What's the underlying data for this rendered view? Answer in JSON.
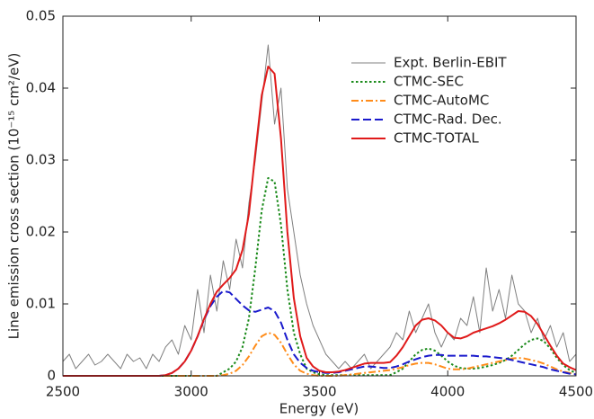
{
  "chart_data": {
    "type": "line",
    "xlabel": "Energy (eV)",
    "ylabel": "Line emission cross section (10⁻¹⁵ cm²/eV)",
    "x": [
      2500,
      2525,
      2550,
      2575,
      2600,
      2625,
      2650,
      2675,
      2700,
      2725,
      2750,
      2775,
      2800,
      2825,
      2850,
      2875,
      2900,
      2925,
      2950,
      2975,
      3000,
      3025,
      3050,
      3075,
      3100,
      3125,
      3150,
      3175,
      3200,
      3225,
      3250,
      3275,
      3300,
      3325,
      3350,
      3375,
      3400,
      3425,
      3450,
      3475,
      3500,
      3525,
      3550,
      3575,
      3600,
      3625,
      3650,
      3675,
      3700,
      3725,
      3750,
      3775,
      3800,
      3825,
      3850,
      3875,
      3900,
      3925,
      3950,
      3975,
      4000,
      4025,
      4050,
      4075,
      4100,
      4125,
      4150,
      4175,
      4200,
      4225,
      4250,
      4275,
      4300,
      4325,
      4350,
      4375,
      4400,
      4425,
      4450,
      4475,
      4500
    ],
    "series": [
      {
        "name": "Expt. Berlin-EBIT",
        "color": "#808080",
        "linestyle": "solid",
        "width": 1,
        "values": [
          0.002,
          0.003,
          0.001,
          0.002,
          0.003,
          0.0015,
          0.002,
          0.003,
          0.002,
          0.001,
          0.003,
          0.002,
          0.0025,
          0.001,
          0.003,
          0.002,
          0.004,
          0.005,
          0.003,
          0.007,
          0.005,
          0.012,
          0.006,
          0.014,
          0.009,
          0.016,
          0.012,
          0.019,
          0.015,
          0.024,
          0.03,
          0.038,
          0.046,
          0.035,
          0.04,
          0.026,
          0.02,
          0.014,
          0.01,
          0.007,
          0.005,
          0.003,
          0.002,
          0.001,
          0.002,
          0.001,
          0.002,
          0.003,
          0.001,
          0.002,
          0.003,
          0.004,
          0.006,
          0.005,
          0.009,
          0.006,
          0.008,
          0.01,
          0.006,
          0.004,
          0.006,
          0.005,
          0.008,
          0.007,
          0.011,
          0.006,
          0.015,
          0.009,
          0.012,
          0.008,
          0.014,
          0.01,
          0.009,
          0.006,
          0.008,
          0.005,
          0.007,
          0.004,
          0.006,
          0.002,
          0.003
        ]
      },
      {
        "name": "CTMC-SEC",
        "color": "#1a8a1a",
        "linestyle": "dotted",
        "width": 2,
        "values": [
          0,
          0,
          0,
          0,
          0,
          0,
          0,
          0,
          0,
          0,
          0,
          0,
          0,
          0,
          0,
          0,
          0,
          0,
          0,
          0,
          0,
          0,
          0,
          0,
          0,
          0.0005,
          0.001,
          0.002,
          0.004,
          0.008,
          0.015,
          0.023,
          0.0275,
          0.027,
          0.021,
          0.012,
          0.006,
          0.003,
          0.001,
          0.0005,
          0.0002,
          0.0001,
          0.0001,
          0.0001,
          0.0001,
          0.0001,
          0.0001,
          0.0001,
          0.0001,
          0.0001,
          0.0001,
          0.0001,
          0.0005,
          0.001,
          0.002,
          0.003,
          0.0036,
          0.0038,
          0.0035,
          0.0028,
          0.002,
          0.0014,
          0.0011,
          0.001,
          0.001,
          0.0011,
          0.0013,
          0.0015,
          0.0018,
          0.0022,
          0.0028,
          0.0036,
          0.0044,
          0.005,
          0.0052,
          0.0048,
          0.0038,
          0.0025,
          0.0015,
          0.0008,
          0.0004
        ]
      },
      {
        "name": "CTMC-AutoMC",
        "color": "#ff8c1a",
        "linestyle": "dashdot",
        "width": 2,
        "values": [
          0,
          0,
          0,
          0,
          0,
          0,
          0,
          0,
          0,
          0,
          0,
          0,
          0,
          0,
          0,
          0,
          0,
          0,
          0,
          0,
          0,
          0,
          0,
          0,
          0,
          0.0001,
          0.0003,
          0.0007,
          0.0015,
          0.0027,
          0.0042,
          0.0055,
          0.006,
          0.0057,
          0.0046,
          0.003,
          0.0016,
          0.0007,
          0.0003,
          0.0001,
          0,
          0,
          0,
          0,
          0.0001,
          0.0002,
          0.0003,
          0.0004,
          0.0005,
          0.0006,
          0.0007,
          0.0008,
          0.001,
          0.0012,
          0.0015,
          0.0017,
          0.0018,
          0.0018,
          0.0016,
          0.0013,
          0.001,
          0.0009,
          0.0009,
          0.001,
          0.0012,
          0.0014,
          0.0016,
          0.0018,
          0.002,
          0.0022,
          0.0024,
          0.0025,
          0.0024,
          0.0022,
          0.002,
          0.0017,
          0.0013,
          0.0009,
          0.0006,
          0.0004,
          0.0002
        ]
      },
      {
        "name": "CTMC-Rad. Dec.",
        "color": "#1a1acc",
        "linestyle": "dashed",
        "width": 2,
        "values": [
          0,
          0,
          0,
          0,
          0,
          0,
          0,
          0,
          0,
          0,
          0,
          0,
          0,
          0,
          0,
          0,
          0.0001,
          0.0004,
          0.001,
          0.002,
          0.0035,
          0.0055,
          0.0078,
          0.0097,
          0.011,
          0.0118,
          0.0116,
          0.0107,
          0.0098,
          0.0091,
          0.0089,
          0.0092,
          0.0095,
          0.009,
          0.0074,
          0.005,
          0.003,
          0.0018,
          0.0011,
          0.0007,
          0.0005,
          0.0004,
          0.0004,
          0.0005,
          0.0007,
          0.0009,
          0.0011,
          0.0013,
          0.0013,
          0.0012,
          0.0011,
          0.0011,
          0.0013,
          0.0016,
          0.002,
          0.0023,
          0.0026,
          0.0028,
          0.0029,
          0.0029,
          0.0028,
          0.0028,
          0.0028,
          0.0028,
          0.0028,
          0.0027,
          0.0027,
          0.0026,
          0.0025,
          0.0024,
          0.0022,
          0.002,
          0.0018,
          0.0016,
          0.0014,
          0.0012,
          0.0009,
          0.0007,
          0.0005,
          0.0003,
          0.0002
        ]
      },
      {
        "name": "CTMC-TOTAL",
        "color": "#e01a1a",
        "linestyle": "solid",
        "width": 2,
        "values": [
          0,
          0,
          0,
          0,
          0,
          0,
          0,
          0,
          0,
          0,
          0,
          0,
          0,
          0,
          0,
          0,
          0.0001,
          0.0004,
          0.001,
          0.002,
          0.0035,
          0.0055,
          0.0079,
          0.01,
          0.0117,
          0.0127,
          0.0136,
          0.0148,
          0.0175,
          0.0225,
          0.031,
          0.039,
          0.043,
          0.042,
          0.033,
          0.02,
          0.0108,
          0.0055,
          0.0025,
          0.0013,
          0.0007,
          0.0005,
          0.0005,
          0.0006,
          0.0008,
          0.0011,
          0.0014,
          0.0017,
          0.0018,
          0.0018,
          0.0018,
          0.0019,
          0.0028,
          0.004,
          0.0055,
          0.007,
          0.0078,
          0.008,
          0.0077,
          0.007,
          0.006,
          0.0053,
          0.0052,
          0.0055,
          0.006,
          0.0063,
          0.0066,
          0.0069,
          0.0073,
          0.0078,
          0.0084,
          0.009,
          0.0089,
          0.0083,
          0.0072,
          0.0057,
          0.0042,
          0.0028,
          0.0017,
          0.0012,
          0.0008
        ]
      }
    ],
    "xlim": [
      2500,
      4500
    ],
    "xticks": [
      2500,
      3000,
      3500,
      4000,
      4500
    ],
    "ylim": [
      0,
      0.05
    ],
    "yticks": [
      0,
      0.01,
      0.02,
      0.03,
      0.04,
      0.05
    ],
    "grid": false,
    "legend": "upper right"
  }
}
